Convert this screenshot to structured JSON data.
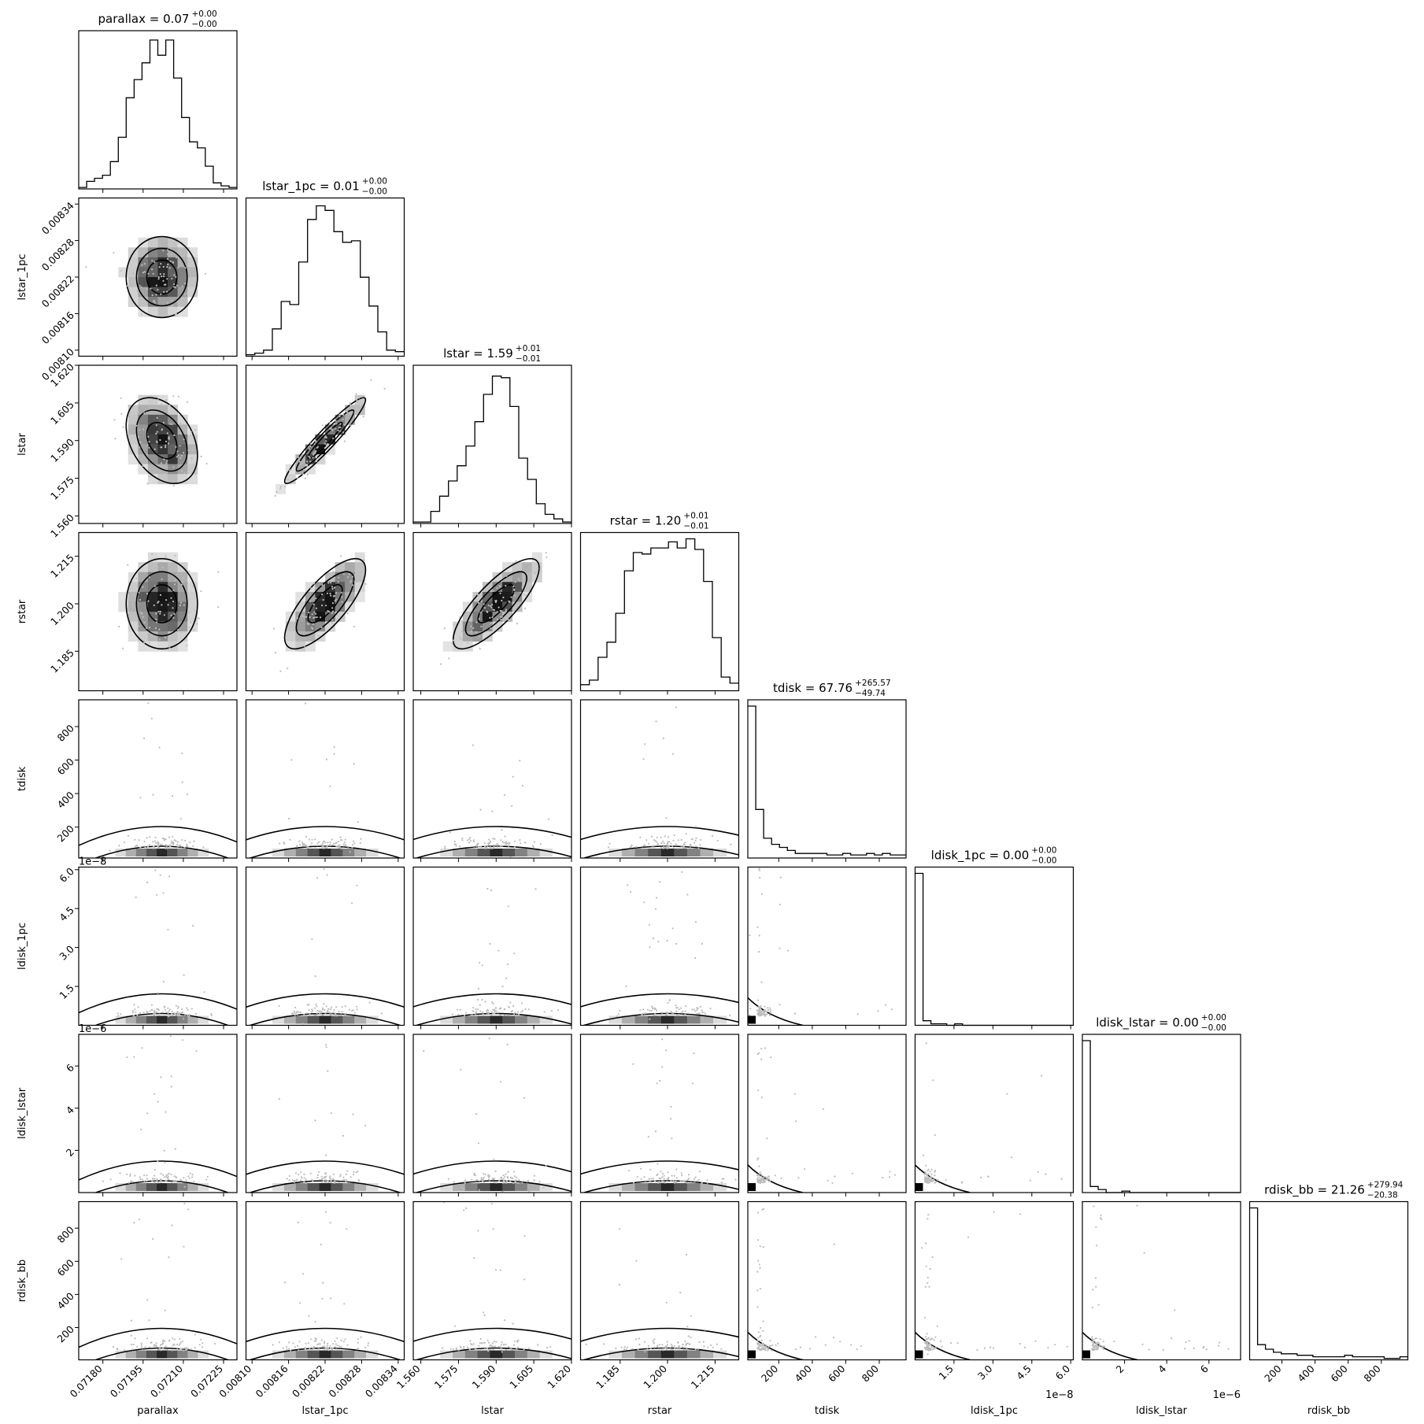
{
  "chart_data": {
    "type": "corner",
    "parameters": [
      {
        "name": "parallax",
        "range": [
          0.07171,
          0.0723
        ],
        "ticks": [
          0.0718,
          0.07195,
          0.0721,
          0.07225
        ],
        "tick_labels": [
          "0.07180",
          "0.07195",
          "0.07210",
          "0.07225"
        ],
        "median": 0.07202,
        "sigma": 7e-05,
        "title": "parallax = 0.07",
        "title_plus": "+0.00",
        "title_minus": "−0.00",
        "offset_text": ""
      },
      {
        "name": "lstar_1pc",
        "range": [
          0.00809,
          0.00835
        ],
        "ticks": [
          0.0081,
          0.00816,
          0.00822,
          0.00828,
          0.00834
        ],
        "tick_labels": [
          "0.00810",
          "0.00816",
          "0.00822",
          "0.00828",
          "0.00834"
        ],
        "median": 0.00822,
        "sigma": 3.5e-05,
        "title": "lstar_1pc = 0.01",
        "title_plus": "+0.00",
        "title_minus": "−0.00",
        "offset_text": ""
      },
      {
        "name": "lstar",
        "range": [
          1.557,
          1.62
        ],
        "ticks": [
          1.56,
          1.575,
          1.59,
          1.605,
          1.62
        ],
        "tick_labels": [
          "1.560",
          "1.575",
          "1.590",
          "1.605",
          "1.620"
        ],
        "median": 1.59,
        "sigma": 0.009,
        "title": "lstar = 1.59",
        "title_plus": "+0.01",
        "title_minus": "−0.01",
        "offset_text": ""
      },
      {
        "name": "rstar",
        "range": [
          1.1725,
          1.2225
        ],
        "ticks": [
          1.185,
          1.2,
          1.215
        ],
        "tick_labels": [
          "1.185",
          "1.200",
          "1.215"
        ],
        "median": 1.2,
        "sigma": 0.0075,
        "title": "rstar = 1.20",
        "title_plus": "+0.01",
        "title_minus": "−0.01",
        "offset_text": ""
      },
      {
        "name": "tdisk",
        "range": [
          15,
          960
        ],
        "ticks": [
          200,
          400,
          600,
          800
        ],
        "tick_labels": [
          "200",
          "400",
          "600",
          "800"
        ],
        "median": 67.76,
        "sigma": 0,
        "title": "tdisk = 67.76",
        "title_plus": "+265.57",
        "title_minus": "−49.74",
        "offset_text": ""
      },
      {
        "name": "ldisk_1pc",
        "range": [
          0,
          6.1
        ],
        "ticks": [
          1.5,
          3.0,
          4.5,
          6.0
        ],
        "tick_labels": [
          "1.5",
          "3.0",
          "4.5",
          "6.0"
        ],
        "median": 0.1,
        "sigma": 0,
        "title": "ldisk_1pc = 0.00",
        "title_plus": "+0.00",
        "title_minus": "−0.00",
        "offset_text": "1e−8"
      },
      {
        "name": "ldisk_lstar",
        "range": [
          0,
          7.5
        ],
        "ticks": [
          2,
          4,
          6
        ],
        "tick_labels": [
          "2",
          "4",
          "6"
        ],
        "median": 0.1,
        "sigma": 0,
        "title": "ldisk_lstar = 0.00",
        "title_plus": "+0.00",
        "title_minus": "−0.00",
        "offset_text": "1e−6"
      },
      {
        "name": "rdisk_bb",
        "range": [
          5,
          960
        ],
        "ticks": [
          200,
          400,
          600,
          800
        ],
        "tick_labels": [
          "200",
          "400",
          "600",
          "800"
        ],
        "median": 21.26,
        "sigma": 0,
        "title": "rdisk_bb = 21.26",
        "title_plus": "+279.94",
        "title_minus": "−20.38",
        "offset_text": ""
      }
    ],
    "correlations": {
      "1-0": 0.0,
      "2-0": -0.35,
      "2-1": 0.95,
      "3-0": 0.0,
      "3-1": 0.75,
      "3-2": 0.8
    },
    "histograms": {
      "parallax": [
        0.01,
        0.05,
        0.07,
        0.09,
        0.18,
        0.34,
        0.6,
        0.72,
        0.83,
        0.98,
        0.88,
        0.98,
        0.73,
        0.47,
        0.31,
        0.27,
        0.15,
        0.04,
        0.02,
        0.01
      ],
      "lstar_1pc": [
        0.01,
        0.02,
        0.04,
        0.18,
        0.36,
        0.34,
        0.62,
        0.9,
        0.99,
        0.96,
        0.82,
        0.75,
        0.76,
        0.52,
        0.33,
        0.16,
        0.04,
        0.03
      ],
      "lstar": [
        0.01,
        0.01,
        0.08,
        0.18,
        0.28,
        0.38,
        0.51,
        0.67,
        0.85,
        0.97,
        0.96,
        0.77,
        0.43,
        0.29,
        0.13,
        0.06,
        0.03,
        0.01
      ],
      "rstar": [
        0.04,
        0.07,
        0.22,
        0.32,
        0.51,
        0.79,
        0.91,
        0.9,
        0.94,
        0.94,
        0.98,
        0.94,
        1.0,
        0.93,
        0.72,
        0.35,
        0.09,
        0.05
      ],
      "tdisk": [
        1.0,
        0.32,
        0.13,
        0.09,
        0.07,
        0.05,
        0.03,
        0.03,
        0.03,
        0.03,
        0.02,
        0.02,
        0.03,
        0.02,
        0.02,
        0.03,
        0.02,
        0.03,
        0.02,
        0.02
      ],
      "ldisk_1pc": [
        1.0,
        0.03,
        0.01,
        0.01,
        0.0,
        0.01,
        0.0,
        0.0,
        0.0,
        0.0,
        0.0,
        0.0,
        0.0,
        0.0,
        0.0,
        0.0,
        0.0,
        0.0,
        0.0,
        0.0
      ],
      "ldisk_lstar": [
        1.0,
        0.04,
        0.02,
        0.0,
        0.0,
        0.01,
        0.0,
        0.0,
        0.0,
        0.0,
        0.0,
        0.0,
        0.0,
        0.0,
        0.0,
        0.0,
        0.0,
        0.0,
        0.0,
        0.0
      ],
      "rdisk_bb": [
        1.0,
        0.1,
        0.07,
        0.05,
        0.04,
        0.04,
        0.03,
        0.03,
        0.02,
        0.02,
        0.02,
        0.02,
        0.03,
        0.02,
        0.02,
        0.02,
        0.02,
        0.01,
        0.01,
        0.02
      ]
    }
  }
}
